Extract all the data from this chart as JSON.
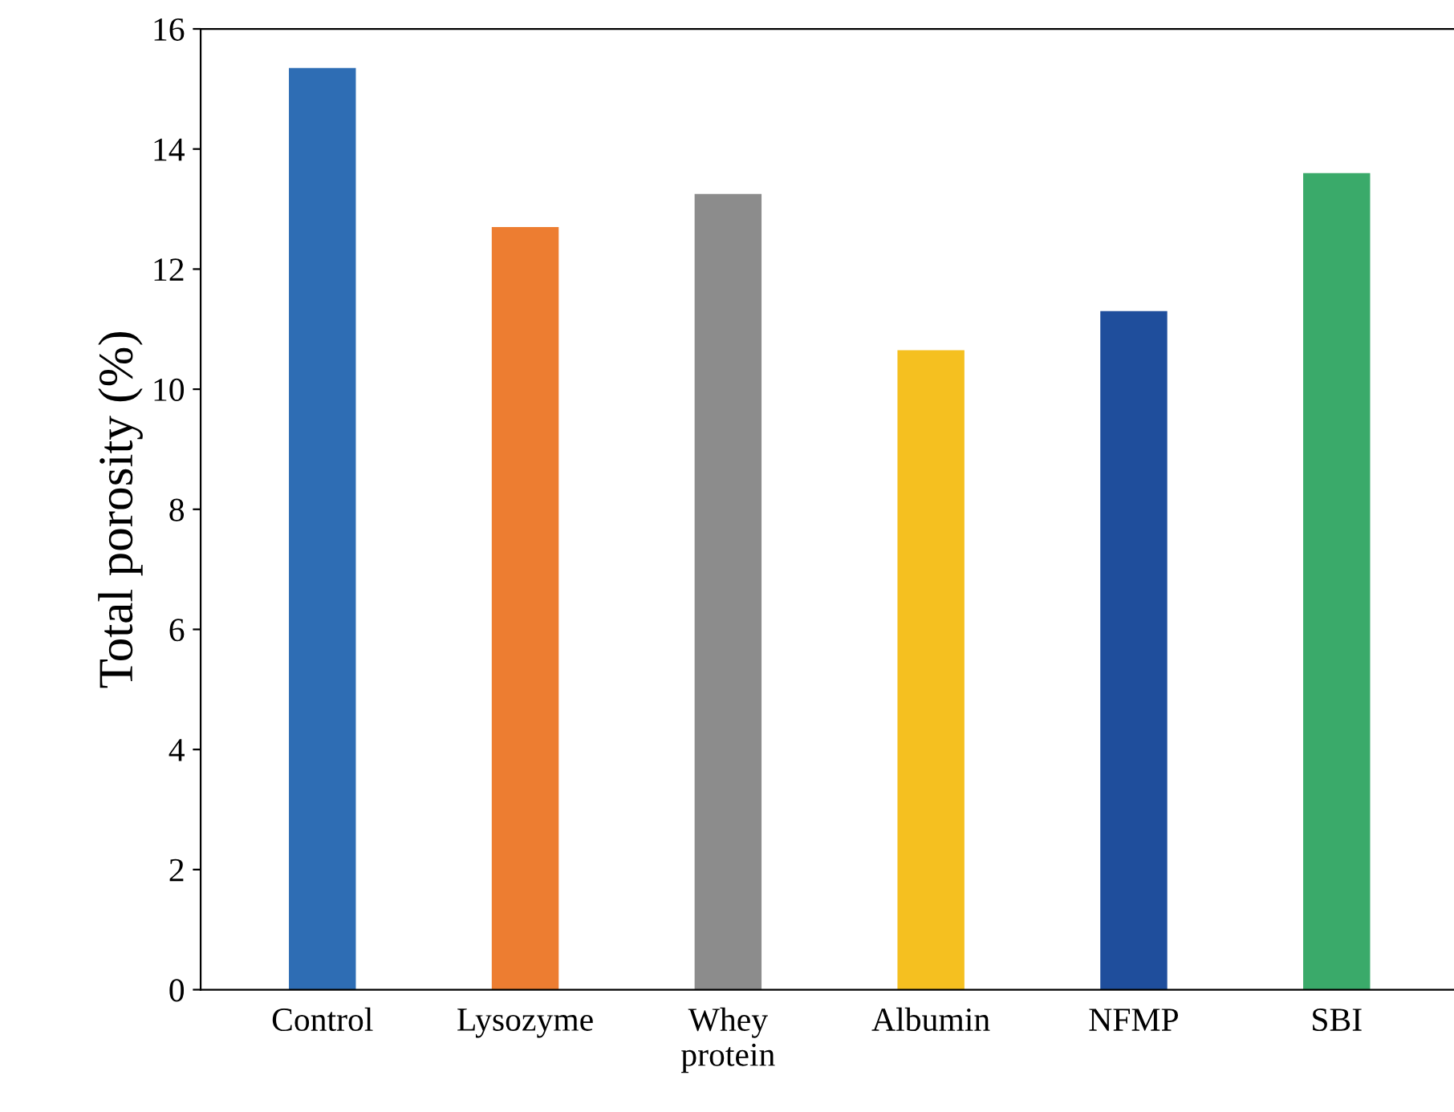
{
  "chart_data": {
    "type": "bar",
    "ylabel": "Total porosity (%)",
    "categories": [
      "Control",
      "Lysozyme",
      "Whey\nprotein",
      "Albumin",
      "NFMP",
      "SBI"
    ],
    "values": [
      15.35,
      12.7,
      13.25,
      10.65,
      11.3,
      13.6
    ],
    "colors": [
      "#2e6db4",
      "#ed7d31",
      "#8c8c8c",
      "#f5c020",
      "#1f4e9c",
      "#3aaa6a"
    ],
    "ylim": [
      0,
      16
    ],
    "yticks": [
      0,
      2,
      4,
      6,
      8,
      10,
      12,
      14,
      16
    ],
    "grid": false,
    "legend": false
  }
}
